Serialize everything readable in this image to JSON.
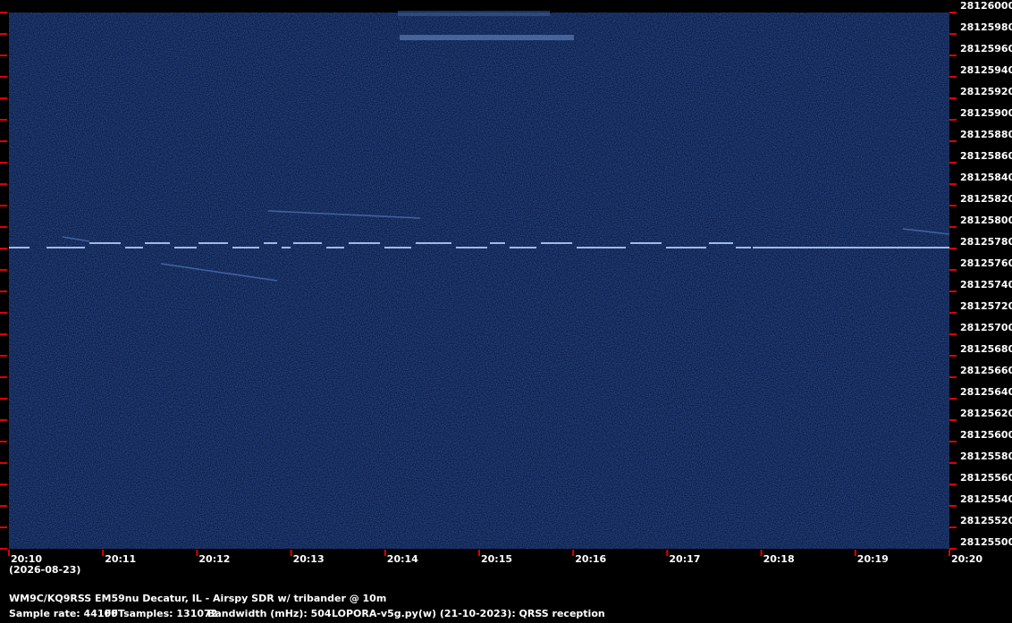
{
  "chart_data": {
    "type": "spectrogram",
    "title": "WM9C/KQ9RSS EM59nu Decatur, IL - Airspy SDR w/ tribander @ 10m",
    "info": [
      "Sample rate: 44100",
      "FFTsamples: 131072",
      "Bandwidth (mHz): 504",
      "LOPORA-v5g.py(w) (21-10-2023): QRSS reception"
    ],
    "date": "(2026-08-23)",
    "categories": [
      "20:10",
      "20:11",
      "20:12",
      "20:13",
      "20:14",
      "20:15",
      "20:16",
      "20:17",
      "20:18",
      "20:19",
      "20:20"
    ],
    "ylim": [
      28125500,
      28126000
    ],
    "yticks": [
      28125500,
      28125520,
      28125540,
      28125560,
      28125580,
      28125600,
      28125620,
      28125640,
      28125660,
      28125680,
      28125700,
      28125720,
      28125740,
      28125760,
      28125780,
      28125800,
      28125820,
      28125840,
      28125860,
      28125880,
      28125900,
      28125920,
      28125940,
      28125960,
      28125980,
      28126000
    ],
    "tick_color": "#e00000"
  }
}
